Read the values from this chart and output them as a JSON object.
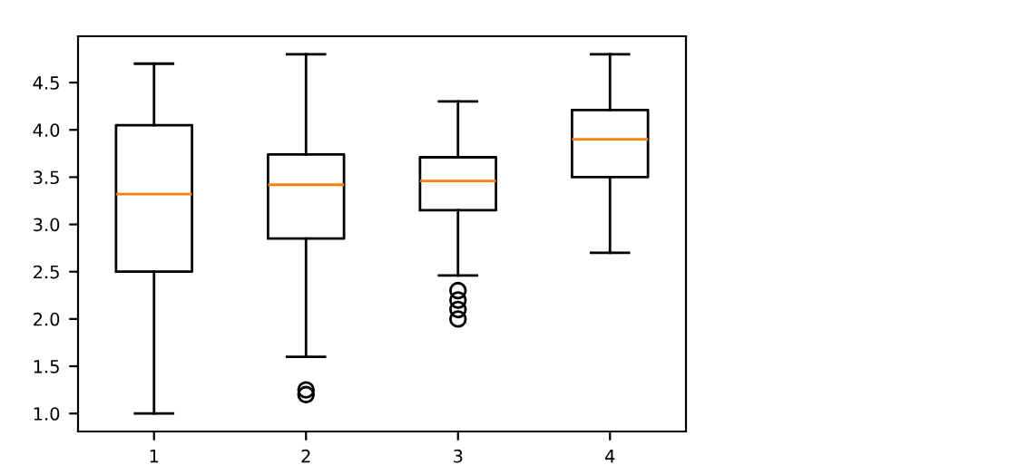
{
  "chart_data": {
    "type": "box",
    "categories": [
      "1",
      "2",
      "3",
      "4"
    ],
    "boxes": [
      {
        "low": 1.0,
        "q1": 2.5,
        "median": 3.32,
        "q3": 4.05,
        "high": 4.7
      },
      {
        "low": 1.6,
        "q1": 2.85,
        "median": 3.42,
        "q3": 3.74,
        "high": 4.8,
        "outliers": [
          1.2,
          1.25
        ]
      },
      {
        "low": 2.46,
        "q1": 3.15,
        "median": 3.46,
        "q3": 3.71,
        "high": 4.3,
        "outliers": [
          2.0,
          2.1,
          2.2,
          2.3
        ]
      },
      {
        "low": 2.7,
        "q1": 3.5,
        "median": 3.9,
        "q3": 4.21,
        "high": 4.8
      }
    ],
    "ylim": [
      0.81,
      4.99
    ],
    "yticks": [
      {
        "value": 1.0,
        "label": "1.0"
      },
      {
        "value": 1.5,
        "label": "1.5"
      },
      {
        "value": 2.0,
        "label": "2.0"
      },
      {
        "value": 2.5,
        "label": "2.5"
      },
      {
        "value": 3.0,
        "label": "3.0"
      },
      {
        "value": 3.5,
        "label": "3.5"
      },
      {
        "value": 4.0,
        "label": "4.0"
      },
      {
        "value": 4.5,
        "label": "4.5"
      }
    ],
    "grid": false,
    "legend": false
  }
}
